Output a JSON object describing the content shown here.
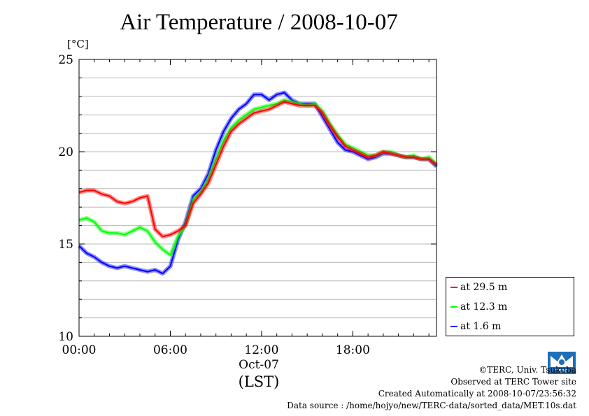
{
  "chart_data": {
    "type": "line",
    "title": "Air Temperature / 2008-10-07",
    "ylabel": "[°C]",
    "xlabel": "(LST)",
    "xsublabel": "Oct-07",
    "x_range_hours": [
      0,
      23.5
    ],
    "ylim": [
      10,
      25
    ],
    "yticks": [
      10,
      15,
      20,
      25
    ],
    "xticks": [
      {
        "hour": 0,
        "label": "00:00"
      },
      {
        "hour": 6,
        "label": "06:00"
      },
      {
        "hour": 12,
        "label": "12:00"
      },
      {
        "hour": 18,
        "label": "18:00"
      }
    ],
    "grid": true,
    "legend_position": "bottom-right outside",
    "x": [
      0,
      0.5,
      1,
      1.5,
      2,
      2.5,
      3,
      3.5,
      4,
      4.5,
      5,
      5.5,
      6,
      6.5,
      7,
      7.5,
      8,
      8.5,
      9,
      9.5,
      10,
      10.5,
      11,
      11.5,
      12,
      12.5,
      13,
      13.5,
      14,
      14.5,
      15,
      15.5,
      16,
      16.5,
      17,
      17.5,
      18,
      18.5,
      19,
      19.5,
      20,
      20.5,
      21,
      21.5,
      22,
      22.5,
      23,
      23.5
    ],
    "series": [
      {
        "name": "at 29.5 m",
        "color": "#ff0000",
        "values": [
          17.8,
          17.9,
          17.9,
          17.7,
          17.6,
          17.3,
          17.2,
          17.3,
          17.5,
          17.6,
          15.8,
          15.4,
          15.5,
          15.7,
          16.0,
          17.2,
          17.7,
          18.3,
          19.3,
          20.3,
          21.1,
          21.5,
          21.8,
          22.1,
          22.2,
          22.3,
          22.5,
          22.7,
          22.6,
          22.5,
          22.5,
          22.5,
          22.1,
          21.4,
          20.8,
          20.3,
          20.1,
          19.9,
          19.7,
          19.8,
          20.0,
          19.9,
          19.8,
          19.7,
          19.7,
          19.6,
          19.6,
          19.3
        ]
      },
      {
        "name": "at 12.3 m",
        "color": "#00ff00",
        "values": [
          16.3,
          16.4,
          16.2,
          15.7,
          15.6,
          15.6,
          15.5,
          15.7,
          15.9,
          15.7,
          15.1,
          14.7,
          14.4,
          15.4,
          16.0,
          17.4,
          17.8,
          18.5,
          19.6,
          20.6,
          21.3,
          21.7,
          22.0,
          22.3,
          22.4,
          22.5,
          22.6,
          22.8,
          22.7,
          22.6,
          22.5,
          22.6,
          22.2,
          21.5,
          20.9,
          20.4,
          20.2,
          20.0,
          19.8,
          19.8,
          20.0,
          20.0,
          19.8,
          19.7,
          19.8,
          19.6,
          19.7,
          19.3
        ]
      },
      {
        "name": "at 1.6 m",
        "color": "#0000ff",
        "values": [
          14.9,
          14.5,
          14.3,
          14.0,
          13.8,
          13.7,
          13.8,
          13.7,
          13.6,
          13.5,
          13.6,
          13.4,
          13.8,
          15.2,
          16.2,
          17.6,
          18.0,
          18.8,
          20.1,
          21.1,
          21.8,
          22.3,
          22.6,
          23.1,
          23.1,
          22.8,
          23.1,
          23.2,
          22.8,
          22.6,
          22.6,
          22.6,
          21.9,
          21.2,
          20.5,
          20.1,
          20.0,
          19.8,
          19.6,
          19.7,
          19.9,
          19.9,
          19.8,
          19.7,
          19.7,
          19.6,
          19.6,
          19.2
        ]
      }
    ]
  },
  "footer": {
    "copyright": "©TERC, Univ. Tsukuba",
    "site": "Observed at TERC Tower site",
    "created": "Created Automatically at 2008-10-07/23:56:32",
    "source": "Data source : /home/hojyo/new/TERC-data/sorted_data/MET.10s.dat"
  },
  "logo": {
    "text": "TERC",
    "color": "#1e6fb8",
    "icon": "terc-logo-icon"
  }
}
